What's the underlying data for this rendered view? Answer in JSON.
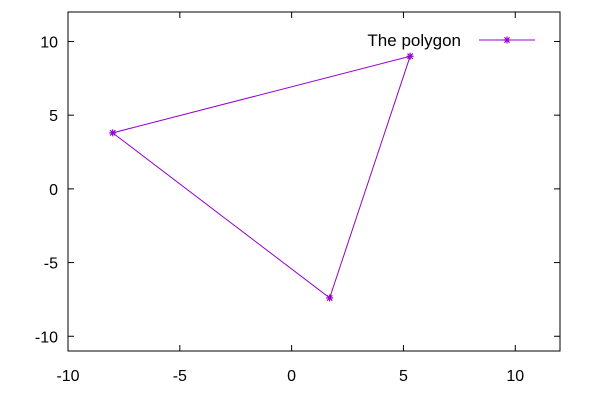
{
  "chart_data": {
    "type": "line",
    "title": "",
    "xlabel": "",
    "ylabel": "",
    "xlim": [
      -10,
      12
    ],
    "ylim": [
      -11,
      12
    ],
    "x_ticks": [
      {
        "value": -10,
        "label": "-10"
      },
      {
        "value": -5,
        "label": "-5"
      },
      {
        "value": 0,
        "label": "0"
      },
      {
        "value": 5,
        "label": "5"
      },
      {
        "value": 10,
        "label": "10"
      }
    ],
    "y_ticks": [
      {
        "value": -10,
        "label": "-10"
      },
      {
        "value": -5,
        "label": "-5"
      },
      {
        "value": 0,
        "label": "0"
      },
      {
        "value": 5,
        "label": "5"
      },
      {
        "value": 10,
        "label": "10"
      }
    ],
    "grid": false,
    "legend": "top-right",
    "series": [
      {
        "name": "The polygon",
        "color": "#9400d3",
        "marker": "star",
        "closed": true,
        "x": [
          -8.0,
          5.3,
          1.7
        ],
        "y": [
          3.8,
          9.0,
          -7.4
        ]
      }
    ]
  }
}
